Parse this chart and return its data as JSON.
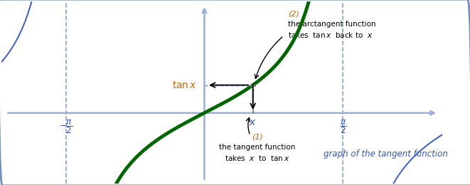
{
  "fig_width": 6.61,
  "fig_height": 2.6,
  "dpi": 100,
  "bg_color": "#ffffff",
  "border_color": "#7090c0",
  "axis_color": "#9aaddd",
  "tan_color": "#006600",
  "blue_curve_color": "#4466cc",
  "dashed_color": "#7799cc",
  "label_color_tan": "#cc6600",
  "label_color_blue": "#3355cc",
  "x_val": 0.55,
  "xlim": [
    -2.3,
    2.7
  ],
  "ylim": [
    -1.55,
    2.45
  ],
  "pi_half": 1.5707963267948966,
  "annotation1_title": "(1)",
  "annotation1_line1": "the tangent function",
  "annotation1_line2": "takes  x  to  tan x",
  "annotation2_title": "(2)",
  "annotation2_line1": "the arctangent function",
  "annotation2_line2": "takes  tan x  back to  x",
  "graph_label": "graph of the tangent function",
  "tanx_label": "tan x",
  "x_label": "x"
}
